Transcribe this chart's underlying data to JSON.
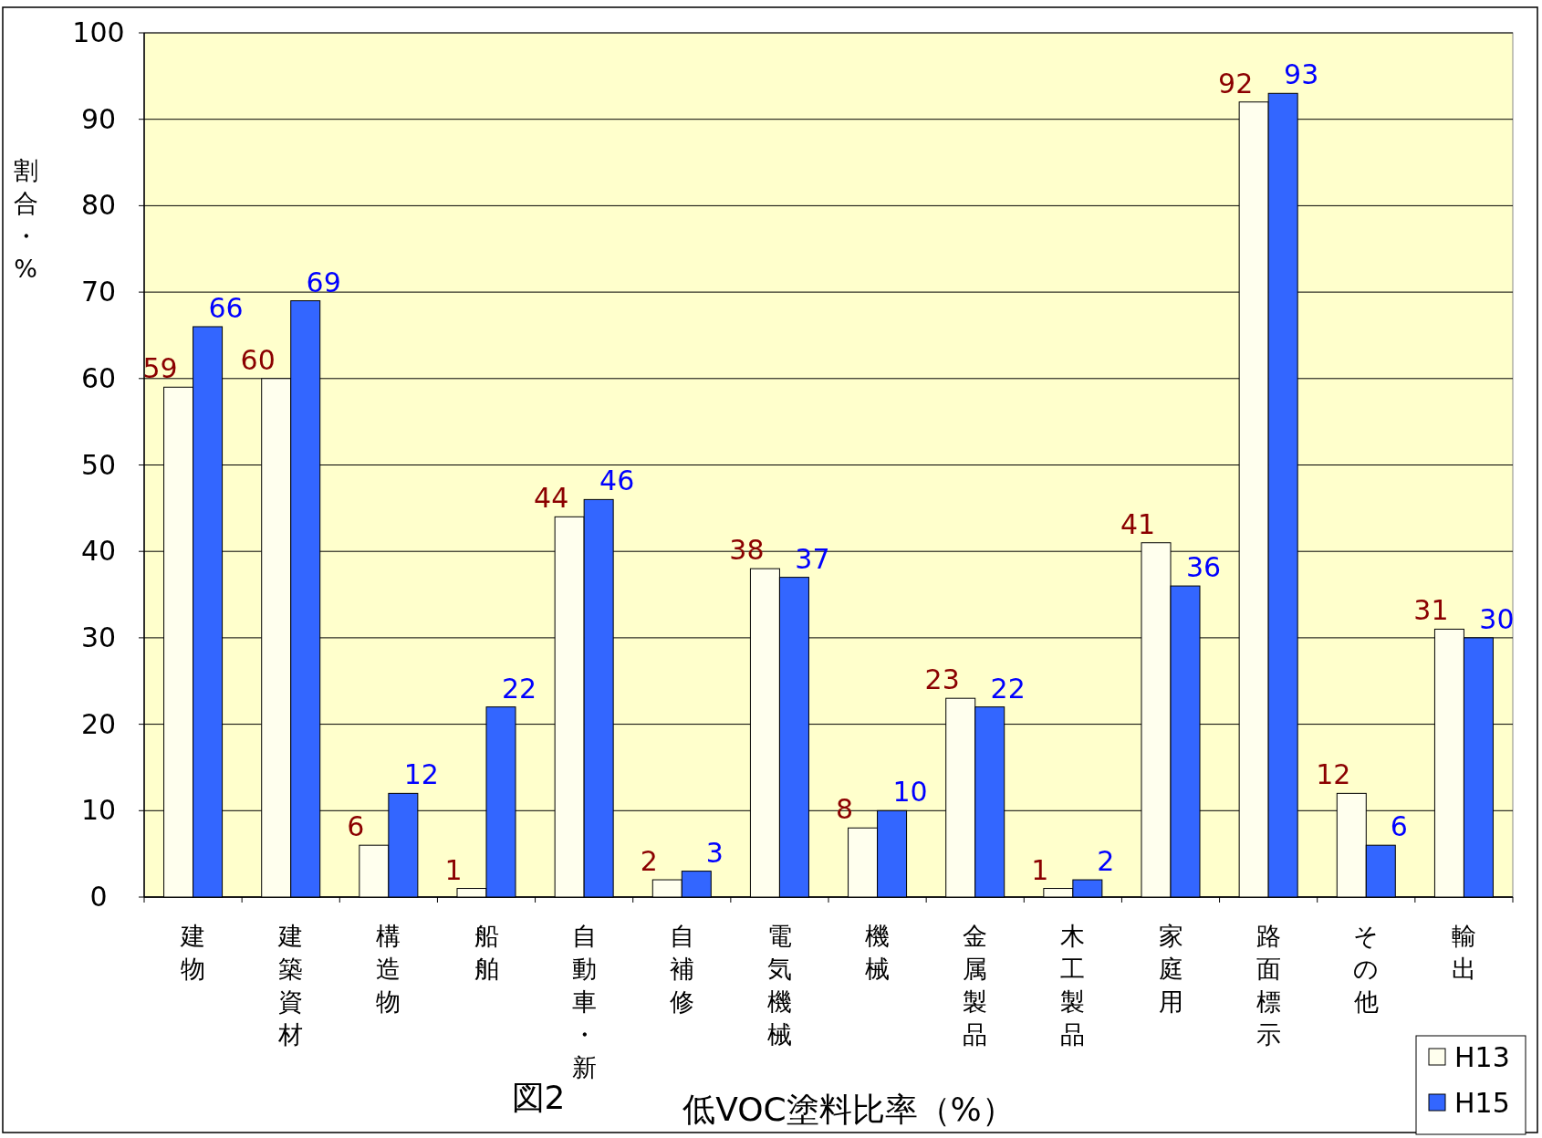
{
  "chart_data": {
    "type": "bar",
    "title": "図2",
    "subtitle": "低VOC塗料比率（%）",
    "ylabel": "割合・%",
    "categories": [
      "建物",
      "建築資材",
      "構造物",
      "船舶",
      "自動車・新",
      "自補修",
      "電気機械",
      "機械",
      "金属製品",
      "木工製品",
      "家庭用",
      "路面標示",
      "その他",
      "輸出"
    ],
    "series": [
      {
        "name": "H13",
        "color": "#ffffee",
        "values": [
          59,
          60,
          6,
          1,
          44,
          2,
          38,
          8,
          23,
          1,
          41,
          92,
          12,
          31
        ]
      },
      {
        "name": "H15",
        "color": "#3366ff",
        "values": [
          66,
          69,
          12,
          22,
          46,
          3,
          37,
          10,
          22,
          2,
          36,
          93,
          6,
          30
        ]
      }
    ],
    "ylim": [
      0,
      100
    ],
    "yticks": [
      0,
      10,
      20,
      30,
      40,
      50,
      60,
      70,
      80,
      90,
      100
    ],
    "grid": "y",
    "legend": "bottom right",
    "data_labels": true
  }
}
